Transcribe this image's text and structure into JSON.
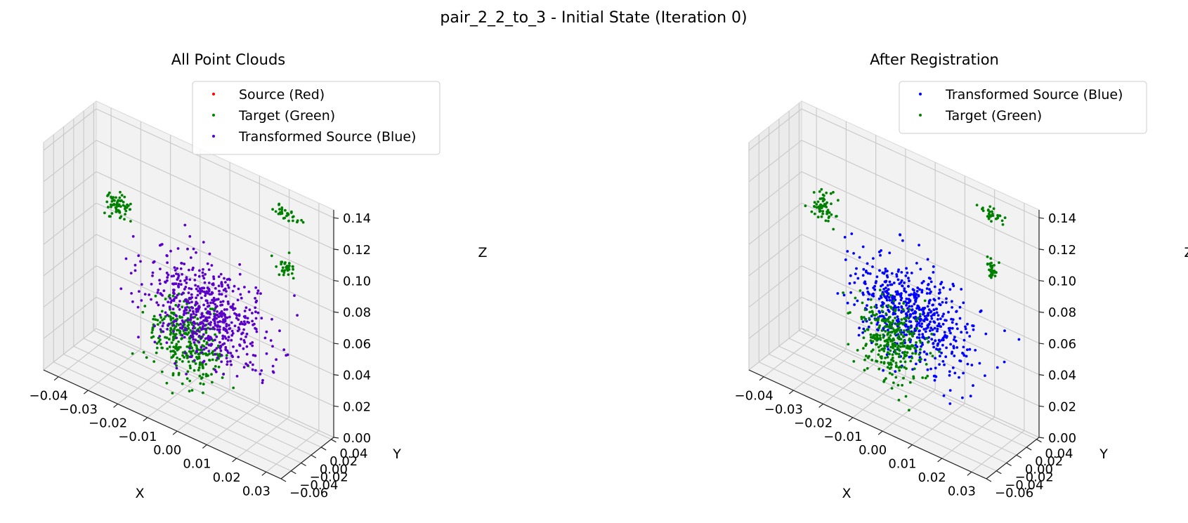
{
  "figure": {
    "title": "pair_2_2_to_3 - Initial State (Iteration 0)"
  },
  "colors": {
    "source": "#ff0000",
    "target": "#008000",
    "transformed": "#0000ff",
    "overlap": "#5a00c8"
  },
  "panels": [
    {
      "title": "All Point Clouds",
      "legend": [
        "Source (Red)",
        "Target (Green)",
        "Transformed Source (Blue)"
      ],
      "x_ticks": [
        "−0.04",
        "−0.03",
        "−0.02",
        "−0.01",
        "0.00",
        "0.01",
        "0.02",
        "0.03"
      ],
      "y_ticks": [
        "−0.06",
        "−0.04",
        "−0.02",
        "0.00",
        "0.02",
        "0.04"
      ],
      "z_ticks": [
        "0.00",
        "0.02",
        "0.04",
        "0.06",
        "0.08",
        "0.10",
        "0.12",
        "0.14"
      ],
      "xlabel": "X",
      "ylabel": "Y",
      "zlabel": "Z"
    },
    {
      "title": "After Registration",
      "legend": [
        "Transformed Source (Blue)",
        "Target (Green)"
      ],
      "x_ticks": [
        "−0.04",
        "−0.03",
        "−0.02",
        "−0.01",
        "0.00",
        "0.01",
        "0.02",
        "0.03"
      ],
      "y_ticks": [
        "−0.06",
        "−0.04",
        "−0.02",
        "0.00",
        "0.02",
        "0.04"
      ],
      "z_ticks": [
        "0.00",
        "0.02",
        "0.04",
        "0.06",
        "0.08",
        "0.10",
        "0.12",
        "0.14"
      ],
      "xlabel": "X",
      "ylabel": "Y",
      "zlabel": "Z"
    }
  ],
  "chart_data": [
    {
      "type": "scatter",
      "title": "All Point Clouds",
      "xlabel": "X",
      "ylabel": "Y",
      "zlabel": "Z",
      "xlim": [
        -0.045,
        0.035
      ],
      "ylim": [
        -0.06,
        0.045
      ],
      "zlim": [
        0.0,
        0.145
      ],
      "grid": true,
      "legend_position": "top-right",
      "series": [
        {
          "name": "Source (Red)",
          "color": "#ff0000",
          "clusters": []
        },
        {
          "name": "Target (Green)",
          "color": "#008000",
          "clusters": [
            {
              "center": [
                -0.005,
                -0.01,
                0.04
              ],
              "spread": [
                0.012,
                0.012,
                0.025
              ],
              "n": 320
            },
            {
              "center": [
                -0.035,
                0.03,
                0.09
              ],
              "spread": [
                0.004,
                0.012,
                0.008
              ],
              "n": 60
            },
            {
              "center": [
                0.02,
                0.04,
                0.13
              ],
              "spread": [
                0.004,
                0.004,
                0.004
              ],
              "n": 30
            },
            {
              "center": [
                0.03,
                -0.02,
                0.12
              ],
              "spread": [
                0.003,
                0.003,
                0.006
              ],
              "n": 30
            }
          ]
        },
        {
          "name": "Transformed Source (Blue)",
          "color": "#5a00c8",
          "clusters": [
            {
              "center": [
                0.0,
                0.0,
                0.06
              ],
              "spread": [
                0.02,
                0.02,
                0.03
              ],
              "n": 600
            }
          ]
        }
      ]
    },
    {
      "type": "scatter",
      "title": "After Registration",
      "xlabel": "X",
      "ylabel": "Y",
      "zlabel": "Z",
      "xlim": [
        -0.045,
        0.035
      ],
      "ylim": [
        -0.06,
        0.045
      ],
      "zlim": [
        0.0,
        0.145
      ],
      "grid": true,
      "legend_position": "top-right",
      "series": [
        {
          "name": "Transformed Source (Blue)",
          "color": "#0000ff",
          "clusters": [
            {
              "center": [
                0.0,
                0.0,
                0.06
              ],
              "spread": [
                0.02,
                0.02,
                0.03
              ],
              "n": 600
            }
          ]
        },
        {
          "name": "Target (Green)",
          "color": "#008000",
          "clusters": [
            {
              "center": [
                -0.005,
                -0.01,
                0.04
              ],
              "spread": [
                0.012,
                0.012,
                0.025
              ],
              "n": 320
            },
            {
              "center": [
                -0.035,
                0.03,
                0.09
              ],
              "spread": [
                0.004,
                0.012,
                0.008
              ],
              "n": 60
            },
            {
              "center": [
                0.02,
                0.04,
                0.13
              ],
              "spread": [
                0.004,
                0.004,
                0.004
              ],
              "n": 30
            },
            {
              "center": [
                0.03,
                -0.02,
                0.12
              ],
              "spread": [
                0.003,
                0.003,
                0.006
              ],
              "n": 30
            }
          ]
        }
      ]
    }
  ]
}
